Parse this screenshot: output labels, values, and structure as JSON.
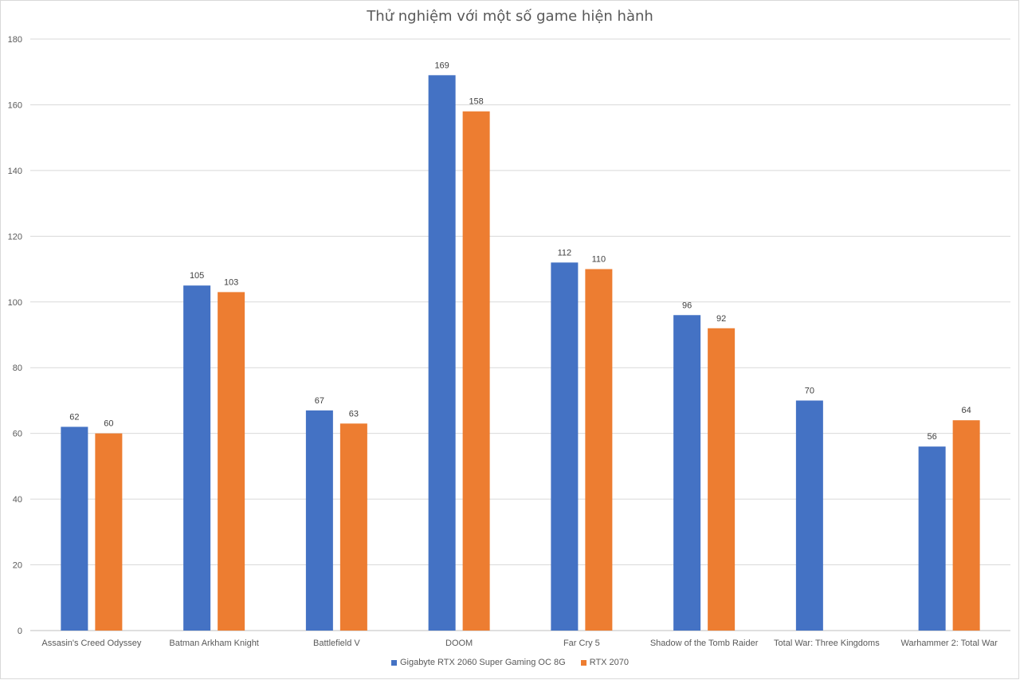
{
  "chart_data": {
    "type": "bar",
    "title": "Thử nghiệm với một số game hiện hành",
    "categories": [
      "Assasin's Creed Odyssey",
      "Batman Arkham Knight",
      "Battlefield V",
      "DOOM",
      "Far Cry 5",
      "Shadow of the Tomb Raider",
      "Total War: Three Kingdoms",
      "Warhammer 2: Total War"
    ],
    "series": [
      {
        "name": "Gigabyte RTX 2060 Super Gaming OC 8G",
        "color": "#4472c4",
        "values": [
          62,
          105,
          67,
          169,
          112,
          96,
          70,
          56
        ]
      },
      {
        "name": "RTX 2070",
        "color": "#ed7d31",
        "values": [
          60,
          103,
          63,
          158,
          110,
          92,
          null,
          64
        ]
      }
    ],
    "ylim": [
      0,
      180
    ],
    "yticks": [
      "0",
      "20",
      "40",
      "60",
      "80",
      "100",
      "120",
      "140",
      "160",
      "180"
    ],
    "grid": true,
    "legend_position": "bottom",
    "data_labels": true
  }
}
